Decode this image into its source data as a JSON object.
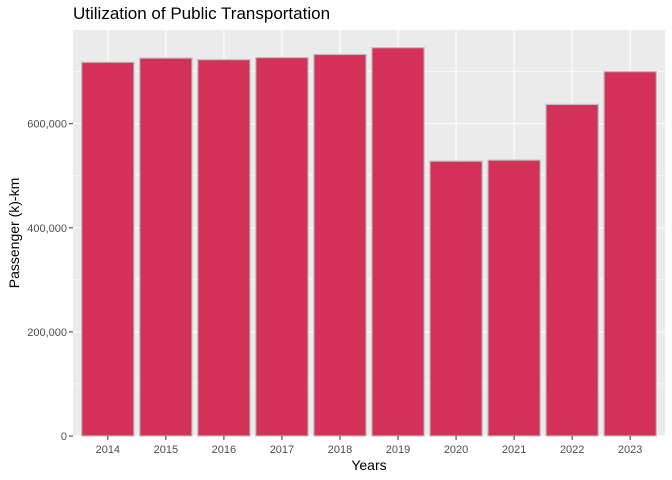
{
  "chart_data": {
    "type": "bar",
    "title": "Utilization of Public Transportation",
    "xlabel": "Years",
    "ylabel": "Passenger (k)-km",
    "categories": [
      "2014",
      "2015",
      "2016",
      "2017",
      "2018",
      "2019",
      "2020",
      "2021",
      "2022",
      "2023"
    ],
    "values": [
      718000,
      726000,
      723000,
      727000,
      733000,
      746000,
      528000,
      530000,
      637000,
      700000
    ],
    "ylim": [
      0,
      780000
    ],
    "yticks": [
      0,
      200000,
      400000,
      600000
    ],
    "ytick_labels": [
      "0",
      "200,000",
      "400,000",
      "600,000"
    ],
    "grid": true,
    "colors": {
      "bar_fill": "#D33157",
      "bar_stroke": "#BEBEBE",
      "panel_background": "#EBEBEB",
      "grid": "#FFFFFF"
    }
  }
}
